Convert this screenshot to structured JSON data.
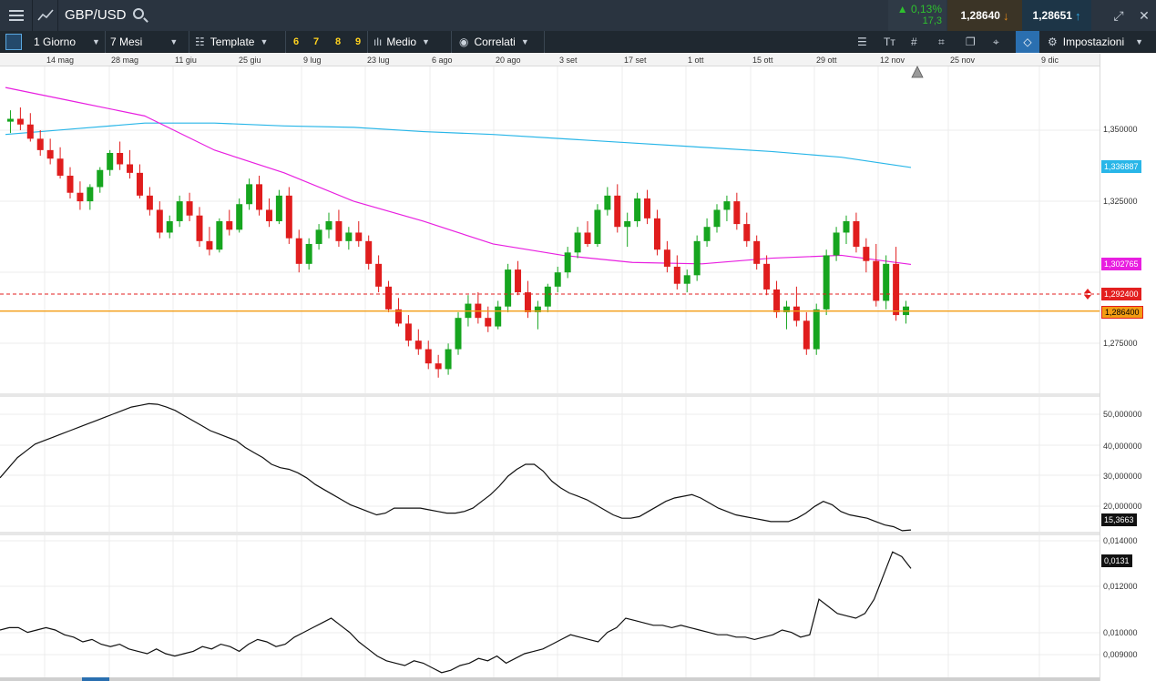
{
  "header": {
    "symbol": "GBP/USD",
    "change_pct": "0,13%",
    "change_points": "17,3",
    "sell_price": "1,28640",
    "buy_price": "1,28651"
  },
  "toolbar": {
    "interval": "1 Giorno",
    "range": "7 Mesi",
    "template": "Template",
    "quick_numbers": [
      "6",
      "7",
      "8",
      "9"
    ],
    "chart_type": "Medio",
    "related": "Correlati",
    "settings": "Impostazioni"
  },
  "date_ticks": [
    "14 mag",
    "28 mag",
    "11 giu",
    "25 giu",
    "9 lug",
    "23 lug",
    "6 ago",
    "20 ago",
    "3 set",
    "17 set",
    "1 ott",
    "15 ott",
    "29 ott",
    "12 nov",
    "25 nov",
    "9 dic"
  ],
  "main_panel": {
    "price_ticks": [
      "1,350000",
      "1,325000",
      "1,275000"
    ],
    "sma_long_label": "1,336887",
    "sma_mid_label": "1,302765",
    "alert_label": "1,292400",
    "current_label": "1,286400",
    "colors": {
      "sma_long": "#29b6e8",
      "sma_mid": "#e81fe0",
      "alert": "#e31f1f",
      "current": "#f39c12",
      "up": "#16a51f",
      "down": "#e01d1d"
    }
  },
  "indicator1": {
    "ticks": [
      "50,000000",
      "40,000000",
      "30,000000",
      "20,000000"
    ],
    "last_label": "15,3663"
  },
  "indicator2": {
    "ticks": [
      "0,014000",
      "0,012000",
      "0,010000",
      "0,009000"
    ],
    "last_label": "0,0131"
  },
  "chart_data": [
    {
      "type": "line",
      "panel": "main",
      "x": [
        "14 mag",
        "28 mag",
        "11 giu",
        "25 giu",
        "9 lug",
        "23 lug",
        "6 ago",
        "20 ago",
        "3 set",
        "17 set",
        "1 ott",
        "15 ott",
        "29 ott",
        "12 nov"
      ],
      "series": [
        {
          "name": "",
          "kind": "sma_long",
          "values": [
            1.3485,
            1.3505,
            1.3525,
            1.3525,
            1.3515,
            1.351,
            1.3495,
            1.3485,
            1.347,
            1.3455,
            1.344,
            1.3425,
            1.3405,
            1.3369
          ]
        },
        {
          "name": "",
          "kind": "sma_mid",
          "values": [
            1.365,
            1.36,
            1.355,
            1.343,
            1.335,
            1.325,
            1.318,
            1.31,
            1.306,
            1.3035,
            1.303,
            1.305,
            1.306,
            1.3028
          ]
        }
      ],
      "candles": [
        [
          1.353,
          1.357,
          1.349,
          1.354
        ],
        [
          1.354,
          1.358,
          1.35,
          1.352
        ],
        [
          1.352,
          1.356,
          1.346,
          1.347
        ],
        [
          1.347,
          1.35,
          1.341,
          1.343
        ],
        [
          1.343,
          1.347,
          1.338,
          1.34
        ],
        [
          1.34,
          1.344,
          1.333,
          1.334
        ],
        [
          1.334,
          1.337,
          1.326,
          1.328
        ],
        [
          1.328,
          1.332,
          1.322,
          1.325
        ],
        [
          1.325,
          1.331,
          1.322,
          1.33
        ],
        [
          1.33,
          1.337,
          1.328,
          1.336
        ],
        [
          1.336,
          1.343,
          1.334,
          1.342
        ],
        [
          1.342,
          1.346,
          1.336,
          1.338
        ],
        [
          1.338,
          1.343,
          1.333,
          1.335
        ],
        [
          1.335,
          1.338,
          1.326,
          1.327
        ],
        [
          1.327,
          1.33,
          1.32,
          1.322
        ],
        [
          1.322,
          1.325,
          1.312,
          1.314
        ],
        [
          1.314,
          1.32,
          1.312,
          1.318
        ],
        [
          1.318,
          1.327,
          1.316,
          1.325
        ],
        [
          1.325,
          1.328,
          1.318,
          1.32
        ],
        [
          1.32,
          1.323,
          1.309,
          1.311
        ],
        [
          1.311,
          1.316,
          1.306,
          1.308
        ],
        [
          1.308,
          1.319,
          1.307,
          1.318
        ],
        [
          1.318,
          1.322,
          1.313,
          1.315
        ],
        [
          1.315,
          1.326,
          1.314,
          1.324
        ],
        [
          1.324,
          1.333,
          1.322,
          1.331
        ],
        [
          1.331,
          1.334,
          1.32,
          1.322
        ],
        [
          1.322,
          1.326,
          1.316,
          1.318
        ],
        [
          1.318,
          1.329,
          1.317,
          1.327
        ],
        [
          1.327,
          1.33,
          1.31,
          1.312
        ],
        [
          1.312,
          1.315,
          1.3,
          1.303
        ],
        [
          1.303,
          1.312,
          1.301,
          1.31
        ],
        [
          1.31,
          1.317,
          1.308,
          1.315
        ],
        [
          1.315,
          1.321,
          1.312,
          1.318
        ],
        [
          1.318,
          1.322,
          1.309,
          1.311
        ],
        [
          1.311,
          1.316,
          1.308,
          1.314
        ],
        [
          1.314,
          1.318,
          1.309,
          1.311
        ],
        [
          1.311,
          1.313,
          1.301,
          1.303
        ],
        [
          1.303,
          1.306,
          1.293,
          1.295
        ],
        [
          1.295,
          1.297,
          1.286,
          1.287
        ],
        [
          1.287,
          1.291,
          1.281,
          1.282
        ],
        [
          1.282,
          1.285,
          1.274,
          1.276
        ],
        [
          1.276,
          1.28,
          1.271,
          1.273
        ],
        [
          1.273,
          1.276,
          1.266,
          1.268
        ],
        [
          1.268,
          1.271,
          1.263,
          1.266
        ],
        [
          1.266,
          1.275,
          1.264,
          1.273
        ],
        [
          1.273,
          1.286,
          1.271,
          1.284
        ],
        [
          1.284,
          1.292,
          1.281,
          1.289
        ],
        [
          1.289,
          1.293,
          1.282,
          1.284
        ],
        [
          1.284,
          1.288,
          1.279,
          1.281
        ],
        [
          1.281,
          1.29,
          1.28,
          1.288
        ],
        [
          1.288,
          1.303,
          1.286,
          1.301
        ],
        [
          1.301,
          1.304,
          1.292,
          1.293
        ],
        [
          1.293,
          1.297,
          1.284,
          1.286
        ],
        [
          1.286,
          1.29,
          1.28,
          1.288
        ],
        [
          1.288,
          1.296,
          1.286,
          1.295
        ],
        [
          1.295,
          1.302,
          1.293,
          1.3
        ],
        [
          1.3,
          1.309,
          1.298,
          1.307
        ],
        [
          1.307,
          1.316,
          1.305,
          1.314
        ],
        [
          1.314,
          1.318,
          1.309,
          1.31
        ],
        [
          1.31,
          1.324,
          1.309,
          1.322
        ],
        [
          1.322,
          1.33,
          1.32,
          1.327
        ],
        [
          1.327,
          1.331,
          1.314,
          1.316
        ],
        [
          1.316,
          1.321,
          1.309,
          1.318
        ],
        [
          1.318,
          1.328,
          1.316,
          1.326
        ],
        [
          1.326,
          1.329,
          1.317,
          1.319
        ],
        [
          1.319,
          1.322,
          1.306,
          1.308
        ],
        [
          1.308,
          1.311,
          1.3,
          1.302
        ],
        [
          1.302,
          1.306,
          1.294,
          1.296
        ],
        [
          1.296,
          1.301,
          1.293,
          1.299
        ],
        [
          1.299,
          1.313,
          1.297,
          1.311
        ],
        [
          1.311,
          1.319,
          1.309,
          1.316
        ],
        [
          1.316,
          1.324,
          1.314,
          1.322
        ],
        [
          1.322,
          1.327,
          1.318,
          1.325
        ],
        [
          1.325,
          1.328,
          1.315,
          1.317
        ],
        [
          1.317,
          1.321,
          1.309,
          1.311
        ],
        [
          1.311,
          1.313,
          1.301,
          1.303
        ],
        [
          1.303,
          1.306,
          1.292,
          1.294
        ],
        [
          1.294,
          1.297,
          1.284,
          1.286
        ],
        [
          1.286,
          1.29,
          1.28,
          1.288
        ],
        [
          1.288,
          1.295,
          1.281,
          1.283
        ],
        [
          1.283,
          1.286,
          1.271,
          1.273
        ],
        [
          1.273,
          1.289,
          1.271,
          1.287
        ],
        [
          1.287,
          1.308,
          1.285,
          1.306
        ],
        [
          1.306,
          1.316,
          1.304,
          1.314
        ],
        [
          1.314,
          1.32,
          1.31,
          1.318
        ],
        [
          1.318,
          1.321,
          1.307,
          1.309
        ],
        [
          1.309,
          1.312,
          1.3,
          1.304
        ],
        [
          1.304,
          1.31,
          1.288,
          1.29
        ],
        [
          1.29,
          1.306,
          1.287,
          1.303
        ],
        [
          1.303,
          1.309,
          1.283,
          1.285
        ],
        [
          1.285,
          1.29,
          1.282,
          1.288
        ]
      ]
    },
    {
      "type": "line",
      "panel": "indicator1",
      "ylim": [
        15,
        55
      ],
      "values": [
        31,
        34,
        37,
        39,
        41,
        42,
        43,
        44,
        45,
        46,
        47,
        48,
        49,
        50,
        51,
        52,
        52.5,
        53,
        52.8,
        52,
        51,
        49.5,
        48,
        46.5,
        45,
        44,
        43,
        42,
        40,
        38.5,
        37,
        35,
        34,
        33.5,
        32.5,
        31,
        29,
        27.5,
        26,
        24.5,
        23,
        22,
        21,
        20,
        20.5,
        22,
        22,
        22,
        22,
        21.5,
        21,
        20.5,
        20.5,
        21,
        22,
        24,
        26,
        28.5,
        31.5,
        33.5,
        35,
        35,
        33,
        30,
        28,
        26.5,
        25.5,
        24.5,
        23,
        21.5,
        20,
        19,
        19,
        19.5,
        21,
        22.5,
        24,
        25,
        25.5,
        26,
        25,
        23.5,
        22,
        21,
        20,
        19.5,
        19,
        18.5,
        18,
        18,
        18,
        19,
        20.5,
        22.5,
        24,
        23,
        21,
        20,
        19.5,
        19,
        18,
        17,
        16.5,
        15.3,
        15.5
      ]
    },
    {
      "type": "line",
      "panel": "indicator2",
      "ylim": [
        0.0085,
        0.0145
      ],
      "values": [
        0.0105,
        0.0106,
        0.0106,
        0.0104,
        0.0105,
        0.0106,
        0.0105,
        0.0103,
        0.0102,
        0.01,
        0.0101,
        0.0099,
        0.0098,
        0.0099,
        0.0097,
        0.0096,
        0.0095,
        0.0097,
        0.0095,
        0.0094,
        0.0095,
        0.0096,
        0.0098,
        0.0097,
        0.0099,
        0.0098,
        0.0096,
        0.0099,
        0.0101,
        0.01,
        0.0098,
        0.0099,
        0.0102,
        0.0104,
        0.0106,
        0.0108,
        0.011,
        0.0107,
        0.0104,
        0.01,
        0.0097,
        0.0094,
        0.0092,
        0.0091,
        0.009,
        0.0092,
        0.0091,
        0.0089,
        0.0087,
        0.0088,
        0.009,
        0.0091,
        0.0093,
        0.0092,
        0.0094,
        0.0091,
        0.0093,
        0.0095,
        0.0096,
        0.0097,
        0.0099,
        0.0101,
        0.0103,
        0.0102,
        0.0101,
        0.01,
        0.0104,
        0.0106,
        0.011,
        0.0109,
        0.0108,
        0.0107,
        0.0107,
        0.0106,
        0.0107,
        0.0106,
        0.0105,
        0.0104,
        0.0103,
        0.0103,
        0.0102,
        0.0102,
        0.0101,
        0.0102,
        0.0103,
        0.0105,
        0.0104,
        0.0102,
        0.0103,
        0.0118,
        0.0115,
        0.0112,
        0.0111,
        0.011,
        0.0112,
        0.0118,
        0.0128,
        0.0138,
        0.0136,
        0.0131
      ]
    }
  ]
}
